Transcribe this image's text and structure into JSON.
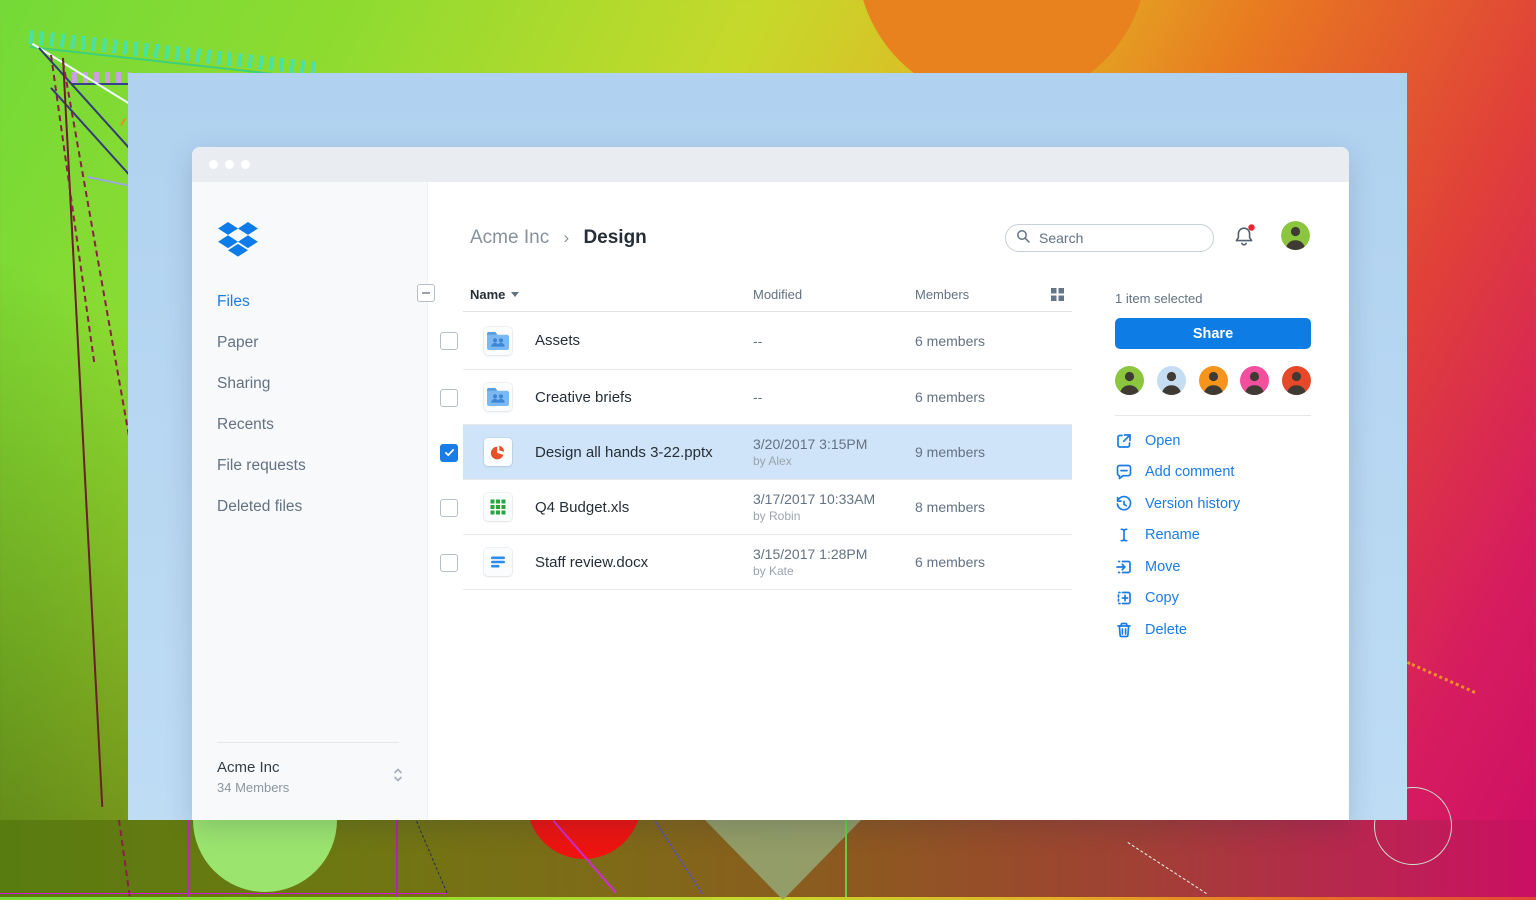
{
  "window": {
    "traffic_dot_count": 3
  },
  "sidebar": {
    "logo": "dropbox-logo",
    "items": [
      {
        "label": "Files",
        "active": true
      },
      {
        "label": "Paper",
        "active": false
      },
      {
        "label": "Sharing",
        "active": false
      },
      {
        "label": "Recents",
        "active": false
      },
      {
        "label": "File requests",
        "active": false
      },
      {
        "label": "Deleted files",
        "active": false
      }
    ],
    "team": {
      "name": "Acme Inc",
      "members": "34 Members"
    }
  },
  "header": {
    "breadcrumb": {
      "parent": "Acme Inc",
      "separator": "›",
      "current": "Design"
    },
    "search": {
      "placeholder": "Search",
      "value": ""
    },
    "notification_bell": {
      "has_unread": true
    }
  },
  "table": {
    "columns": {
      "name": "Name",
      "modified": "Modified",
      "members": "Members"
    },
    "header_checkbox_state": "indeterminate",
    "rows": [
      {
        "name": "Assets",
        "type": "shared-folder",
        "modified": "--",
        "modified_by": "",
        "members": "6 members",
        "selected": false
      },
      {
        "name": "Creative briefs",
        "type": "shared-folder",
        "modified": "--",
        "modified_by": "",
        "members": "6 members",
        "selected": false
      },
      {
        "name": "Design all hands 3-22.pptx",
        "type": "powerpoint",
        "modified": "3/20/2017 3:15PM",
        "modified_by": "by Alex",
        "members": "9 members",
        "selected": true
      },
      {
        "name": "Q4 Budget.xls",
        "type": "spreadsheet",
        "modified": "3/17/2017 10:33AM",
        "modified_by": "by Robin",
        "members": "8 members",
        "selected": false
      },
      {
        "name": "Staff review.docx",
        "type": "document",
        "modified": "3/15/2017 1:28PM",
        "modified_by": "by Kate",
        "members": "6 members",
        "selected": false
      }
    ]
  },
  "detail_panel": {
    "selection_status": "1 item selected",
    "share_label": "Share",
    "member_avatar_colors": [
      "#8cc63e",
      "#c5ddf2",
      "#f6941c",
      "#f24f9e",
      "#e8482a"
    ],
    "actions": [
      {
        "label": "Open",
        "icon": "open-icon"
      },
      {
        "label": "Add comment",
        "icon": "comment-icon"
      },
      {
        "label": "Version history",
        "icon": "history-icon"
      },
      {
        "label": "Rename",
        "icon": "rename-icon"
      },
      {
        "label": "Move",
        "icon": "move-icon"
      },
      {
        "label": "Copy",
        "icon": "copy-icon"
      },
      {
        "label": "Delete",
        "icon": "trash-icon"
      }
    ]
  },
  "colors": {
    "accent_blue": "#1a7ce5",
    "share_button": "#0d7ce4",
    "selected_row": "#cfe4f8",
    "canvas_blue": "#b0d2f0",
    "top_avatar": "#8cc63e"
  }
}
